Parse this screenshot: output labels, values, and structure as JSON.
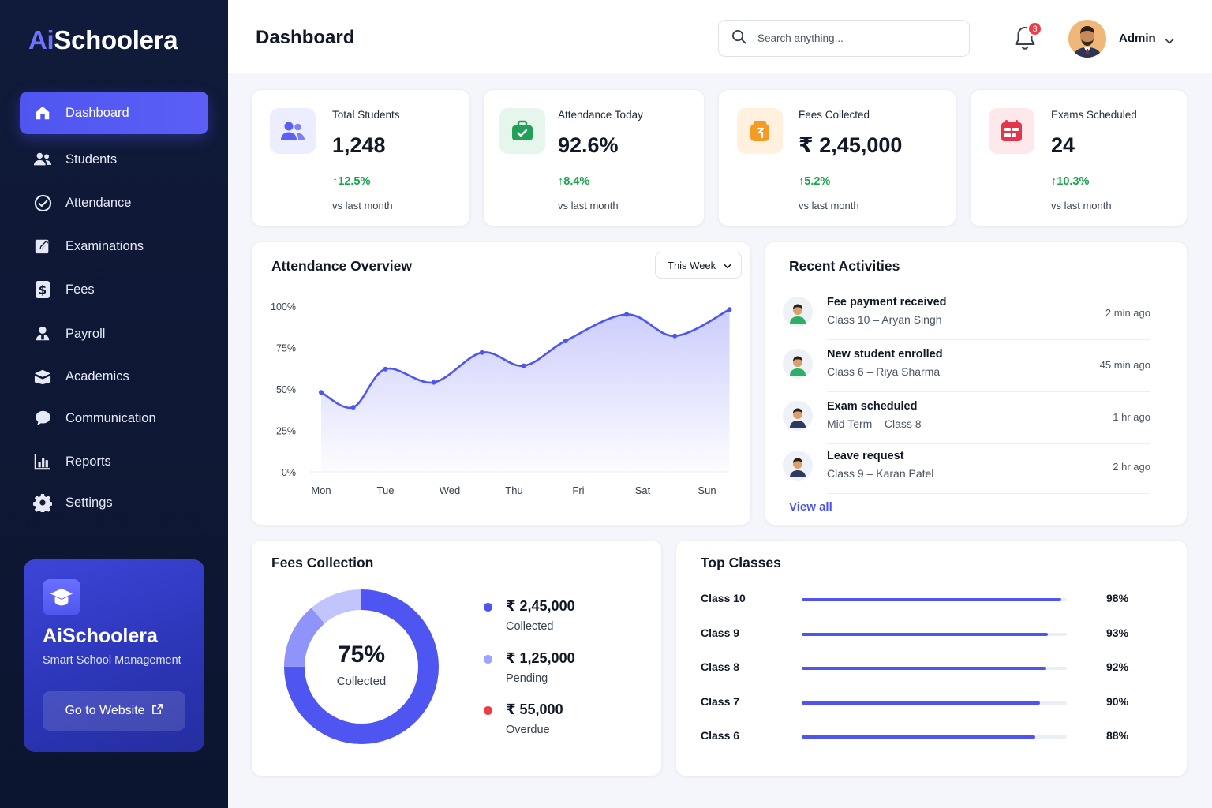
{
  "brand": {
    "prefix": "Ai",
    "suffix": "Schoolera"
  },
  "sidebar": {
    "items": [
      {
        "label": "Dashboard",
        "icon": "home-icon"
      },
      {
        "label": "Students",
        "icon": "users-icon"
      },
      {
        "label": "Attendance",
        "icon": "check-circle-icon"
      },
      {
        "label": "Examinations",
        "icon": "edit-icon"
      },
      {
        "label": "Fees",
        "icon": "dollar-icon"
      },
      {
        "label": "Payroll",
        "icon": "payroll-icon"
      },
      {
        "label": "Academics",
        "icon": "book-icon"
      },
      {
        "label": "Communication",
        "icon": "chat-icon"
      },
      {
        "label": "Reports",
        "icon": "reports-icon"
      },
      {
        "label": "Settings",
        "icon": "gear-icon"
      }
    ],
    "promo": {
      "title": "AiSchoolera",
      "subtitle": "Smart School Management",
      "button": "Go to Website"
    }
  },
  "header": {
    "title": "Dashboard",
    "search_placeholder": "Search anything...",
    "notification_count": "3",
    "user": "Admin"
  },
  "stats": [
    {
      "label": "Total Students",
      "value": "1,248",
      "delta": "12.5%",
      "vs": "vs last month",
      "color": "#5b5ff5",
      "bg": "#eceeff"
    },
    {
      "label": "Attendance Today",
      "value": "92.6%",
      "delta": "8.4%",
      "vs": "vs last month",
      "color": "#22a05a",
      "bg": "#e6f6ec"
    },
    {
      "label": "Fees Collected",
      "value": "₹ 2,45,000",
      "delta": "5.2%",
      "vs": "vs last month",
      "color": "#f59a23",
      "bg": "#fff1de"
    },
    {
      "label": "Exams Scheduled",
      "value": "24",
      "delta": "10.3%",
      "vs": "vs last month",
      "color": "#e5354a",
      "bg": "#fde8eb"
    }
  ],
  "attendance": {
    "title": "Attendance Overview",
    "period": "This Week"
  },
  "chart_data": {
    "type": "area",
    "categories": [
      "Mon",
      "Tue",
      "Wed",
      "Thu",
      "Fri",
      "Sat",
      "Sun"
    ],
    "yticks": [
      "100%",
      "75%",
      "50%",
      "25%",
      "0%"
    ],
    "ylim": [
      0,
      100
    ],
    "series": [
      {
        "x": [
          0.0,
          0.5,
          1.0,
          1.75,
          2.5,
          3.15,
          3.8,
          4.75,
          5.5,
          6.35
        ],
        "values": [
          48,
          39,
          62,
          54,
          72,
          64,
          79,
          95,
          82,
          98
        ]
      }
    ],
    "color": "#4f55f0"
  },
  "activities": {
    "title": "Recent Activities",
    "items": [
      {
        "title": "Fee payment received",
        "sub": "Class 10 – Aryan Singh",
        "time": "2 min ago",
        "shirt": "#2fae6a"
      },
      {
        "title": "New student enrolled",
        "sub": "Class 6 – Riya Sharma",
        "time": "45 min ago",
        "shirt": "#2fae6a"
      },
      {
        "title": "Exam scheduled",
        "sub": "Mid Term – Class 8",
        "time": "1 hr ago",
        "shirt": "#2d3a5e"
      },
      {
        "title": "Leave request",
        "sub": "Class 9 – Karan Patel",
        "time": "2 hr ago",
        "shirt": "#2d3a5e"
      }
    ],
    "view_all": "View all"
  },
  "fees": {
    "title": "Fees Collection",
    "percent": "75%",
    "percent_label": "Collected",
    "collected_fraction": 0.75,
    "items": [
      {
        "value": "₹ 2,45,000",
        "label": "Collected",
        "color": "#4f55f0"
      },
      {
        "value": "₹ 1,25,000",
        "label": "Pending",
        "color": "#9ea3ff"
      },
      {
        "value": "₹ 55,000",
        "label": "Overdue",
        "color": "#ef3b45"
      }
    ],
    "ring_colors": [
      "#4f55f0",
      "#8f94fb",
      "#c2c5fd"
    ]
  },
  "top_classes": {
    "title": "Top Classes",
    "items": [
      {
        "name": "Class 10",
        "pct": "98%",
        "value": 98
      },
      {
        "name": "Class 9",
        "pct": "93%",
        "value": 93
      },
      {
        "name": "Class 8",
        "pct": "92%",
        "value": 92
      },
      {
        "name": "Class 7",
        "pct": "90%",
        "value": 90
      },
      {
        "name": "Class 6",
        "pct": "88%",
        "value": 88
      }
    ]
  }
}
